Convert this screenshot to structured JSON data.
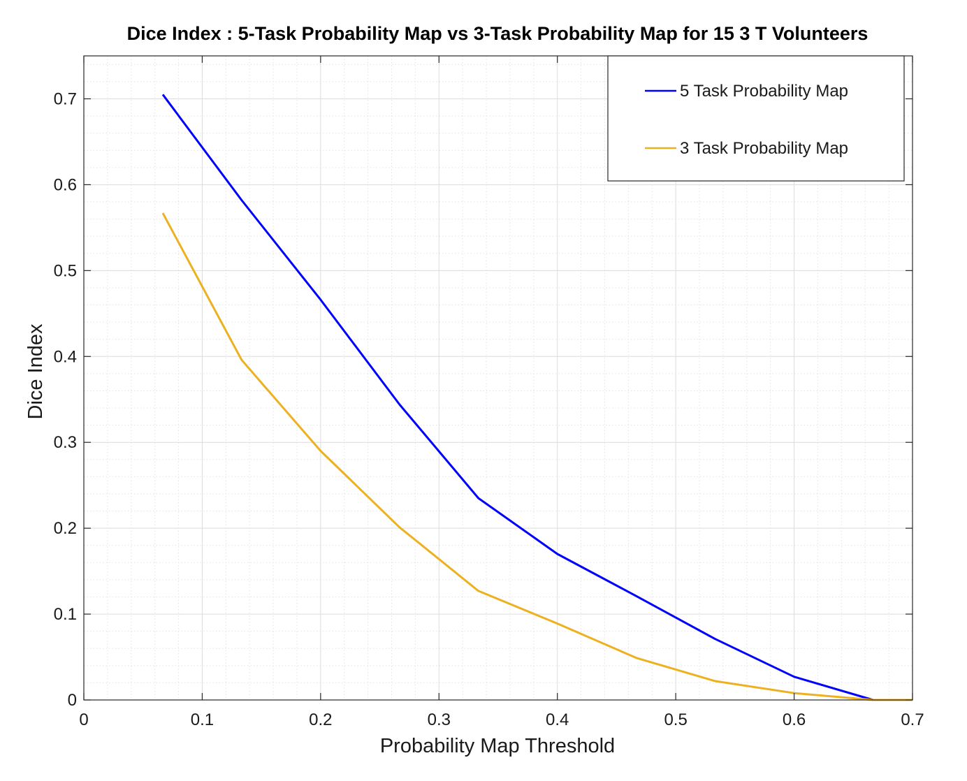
{
  "chart_data": {
    "type": "line",
    "title": "Dice Index : 5-Task Probability Map vs 3-Task Probability Map for 15 3 T Volunteers",
    "xlabel": "Probability Map Threshold",
    "ylabel": "Dice Index",
    "xlim": [
      0,
      0.7
    ],
    "ylim": [
      0,
      0.75
    ],
    "x_ticks": [
      "0",
      "0.1",
      "0.2",
      "0.3",
      "0.4",
      "0.5",
      "0.6",
      "0.7"
    ],
    "y_ticks": [
      "0",
      "0.1",
      "0.2",
      "0.3",
      "0.4",
      "0.5",
      "0.6",
      "0.7"
    ],
    "grid": true,
    "minor_grid": true,
    "legend_position": "top-right",
    "x": [
      0.0667,
      0.1333,
      0.2,
      0.2667,
      0.3333,
      0.4,
      0.4667,
      0.5333,
      0.6,
      0.6667,
      0.7
    ],
    "series": [
      {
        "name": "5 Task Probability Map",
        "color": "#0000ff",
        "values": [
          0.705,
          0.582,
          0.466,
          0.344,
          0.235,
          0.17,
          0.121,
          0.071,
          0.027,
          0.0,
          0.0
        ]
      },
      {
        "name": "3 Task Probability Map",
        "color": "#edb120",
        "values": [
          0.567,
          0.396,
          0.29,
          0.201,
          0.127,
          0.089,
          0.049,
          0.022,
          0.008,
          0.0,
          0.0
        ]
      }
    ]
  }
}
